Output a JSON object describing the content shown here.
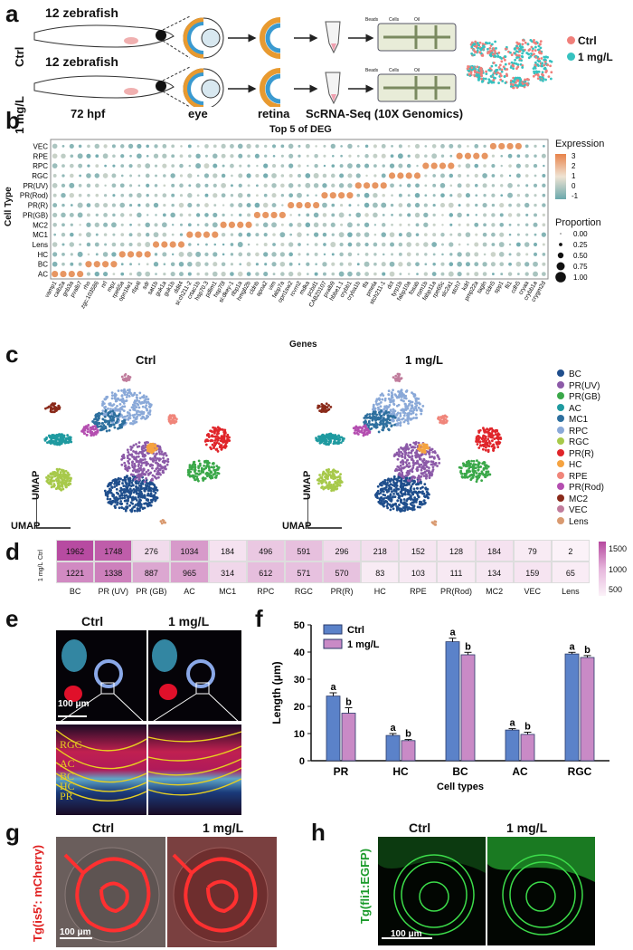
{
  "panels": {
    "a": "a",
    "b": "b",
    "c": "c",
    "d": "d",
    "e": "e",
    "f": "f",
    "g": "g",
    "h": "h"
  },
  "panel_a": {
    "row_labels": [
      "Ctrl",
      "1 mg/L"
    ],
    "fish_labels": [
      "12 zebrafish",
      "12 zebrafish"
    ],
    "stage_labels": [
      "72  hpf",
      "eye",
      "retina",
      "ScRNA-Seq (10X Genomics)"
    ],
    "chip_labels": [
      "Beads",
      "Cells",
      "Oil"
    ],
    "legend": [
      {
        "label": "Ctrl",
        "color": "#f07f7a"
      },
      {
        "label": "1 mg/L",
        "color": "#36c2c0"
      }
    ]
  },
  "panel_b": {
    "title": "Top 5 of DEG",
    "ylabel": "Cell Type",
    "xlabel": "Genes",
    "cell_types": [
      "VEC",
      "RPE",
      "RPC",
      "RGC",
      "PR(UV)",
      "PR(Rod)",
      "PR(R)",
      "PR(GB)",
      "MC2",
      "MC1",
      "Lens",
      "HC",
      "BC",
      "AC"
    ],
    "genes": [
      "vamp1",
      "calb2a",
      "gnb3a",
      "pvalb7",
      "rho",
      "zgc:103586",
      "nrl",
      "mpz",
      "rpe65a",
      "opn1lw1",
      "rbp4l",
      "sdr",
      "sat1b",
      "guk1a",
      "guk1b",
      "ddit4",
      "si:ch211-2",
      "crtac1b",
      "hsp70.3",
      "pdlim1",
      "hsp70l",
      "si:dkey-1",
      "rlbp1a",
      "hmgb2b",
      "cldnb",
      "apoa2",
      "vim",
      "fabp7a",
      "opn1sw2",
      "rcvrn2",
      "mdka",
      "pcbd1",
      "CABZ0107",
      "pvalb9",
      "hbbe1.1",
      "crybb1",
      "cryba1b",
      "tfa",
      "pmela",
      "stch211-1",
      "dct",
      "tyrp1b",
      "fabp10a",
      "fosab",
      "rom1b",
      "fabp11a",
      "rpe65c",
      "slc2a1",
      "stch7",
      "kdrl",
      "pmp22a",
      "tagln",
      "cldn5",
      "spp1",
      "fli1",
      "cdh5",
      "cryaa",
      "crybb1a",
      "crygm2d"
    ],
    "legend_expression": {
      "title": "Expression",
      "ticks": [
        "3",
        "2",
        "1",
        "0",
        "-1"
      ]
    },
    "legend_proportion": {
      "title": "Proportion",
      "ticks": [
        "0.00",
        "0.25",
        "0.50",
        "0.75",
        "1.00"
      ]
    }
  },
  "panel_c": {
    "titles": [
      "Ctrl",
      "1 mg/L"
    ],
    "axis": "UMAP",
    "legend": [
      {
        "label": "BC",
        "color": "#1f4e8c"
      },
      {
        "label": "PR(UV)",
        "color": "#8c5aa8"
      },
      {
        "label": "PR(GB)",
        "color": "#3aa849"
      },
      {
        "label": "AC",
        "color": "#1f9aa0"
      },
      {
        "label": "MC1",
        "color": "#2d6f9e"
      },
      {
        "label": "RPC",
        "color": "#8aa9d8"
      },
      {
        "label": "RGC",
        "color": "#a7c94a"
      },
      {
        "label": "PR(R)",
        "color": "#e0252a"
      },
      {
        "label": "HC",
        "color": "#f5a340"
      },
      {
        "label": "RPE",
        "color": "#f0857a"
      },
      {
        "label": "PR(Rod)",
        "color": "#b44eb0"
      },
      {
        "label": "MC2",
        "color": "#8a2a1a"
      },
      {
        "label": "VEC",
        "color": "#c07c9c"
      },
      {
        "label": "Lens",
        "color": "#d99a70"
      }
    ]
  },
  "panel_d": {
    "rows": [
      "Ctrl",
      "1 mg/L"
    ],
    "columns": [
      "BC",
      "PR (UV)",
      "PR (GB)",
      "AC",
      "MC1",
      "RPC",
      "RGC",
      "PR(R)",
      "HC",
      "RPE",
      "PR(Rod)",
      "MC2",
      "VEC",
      "Lens"
    ],
    "values": [
      [
        1962,
        1748,
        276,
        1034,
        184,
        496,
        591,
        296,
        218,
        152,
        128,
        184,
        79,
        2
      ],
      [
        1221,
        1338,
        887,
        965,
        314,
        612,
        571,
        570,
        83,
        103,
        111,
        134,
        159,
        65
      ]
    ],
    "scale_ticks": [
      "1500",
      "1000",
      "500"
    ]
  },
  "panel_e": {
    "titles": [
      "Ctrl",
      "1 mg/L"
    ],
    "scalebar": "100 μm",
    "layer_labels": [
      "RGC",
      "AC",
      "BC",
      "HC",
      "PR"
    ]
  },
  "chart_data": {
    "type": "bar",
    "categories": [
      "PR",
      "HC",
      "BC",
      "AC",
      "RGC"
    ],
    "series": [
      {
        "name": "Ctrl",
        "values": [
          23.8,
          9.3,
          43.8,
          11.3,
          39.3
        ],
        "errors": [
          1.2,
          0.7,
          1.3,
          0.5,
          0.6
        ],
        "letters": [
          "a",
          "a",
          "a",
          "a",
          "a"
        ],
        "color": "#5b82c9"
      },
      {
        "name": "1 mg/L",
        "values": [
          17.5,
          7.4,
          39.0,
          9.7,
          38.0
        ],
        "errors": [
          2.0,
          0.4,
          0.9,
          0.8,
          0.7
        ],
        "letters": [
          "b",
          "b",
          "b",
          "b",
          "b"
        ],
        "color": "#c98ac6"
      }
    ],
    "ylabel": "Length (μm)",
    "xlabel": "Cell types",
    "ylim": [
      0,
      50
    ],
    "yticks": [
      0,
      10,
      20,
      30,
      40,
      50
    ]
  },
  "panel_g": {
    "titles": [
      "Ctrl",
      "1 mg/L"
    ],
    "side_label": "Tg(is5′: mCherry)",
    "scalebar": "100 μm"
  },
  "panel_h": {
    "titles": [
      "Ctrl",
      "1 mg/L"
    ],
    "side_label": "Tg(fli1:EGFP)",
    "scalebar": "100 μm"
  }
}
